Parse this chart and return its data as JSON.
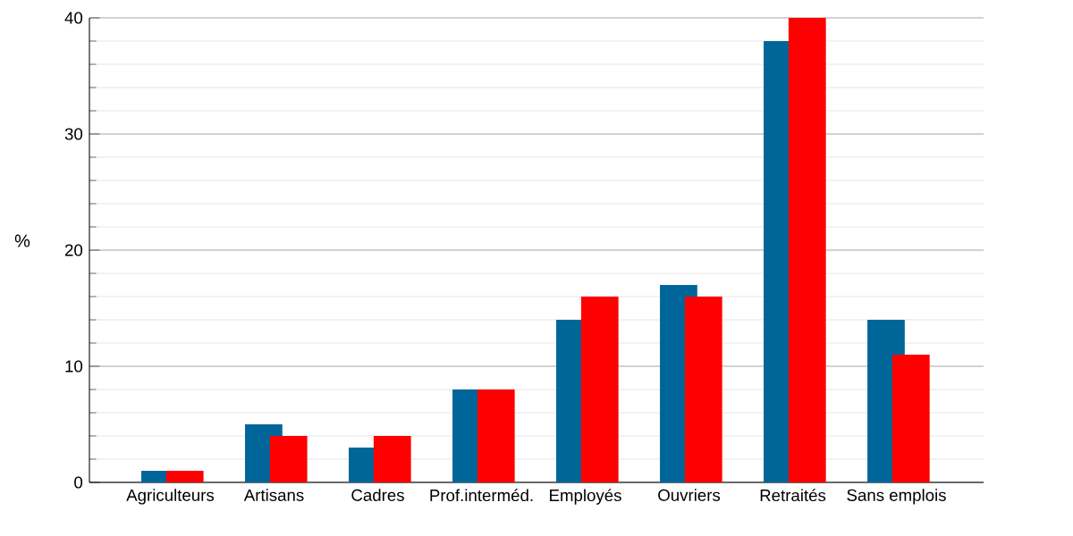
{
  "chart_data": {
    "type": "bar",
    "ylabel": "%",
    "categories": [
      "Agriculteurs",
      "Artisans",
      "Cadres",
      "Prof.interméd.",
      "Employés",
      "Ouvriers",
      "Retraités",
      "Sans emplois"
    ],
    "series": [
      {
        "color": "#006699",
        "values": [
          1,
          5,
          3,
          8,
          14,
          17,
          38,
          14
        ]
      },
      {
        "color": "#ff0000",
        "values": [
          1,
          4,
          4,
          8,
          16,
          16,
          40,
          11
        ]
      }
    ],
    "ylim": [
      0,
      40
    ],
    "yticks": [
      0,
      10,
      20,
      30,
      40
    ],
    "grid": "y"
  }
}
